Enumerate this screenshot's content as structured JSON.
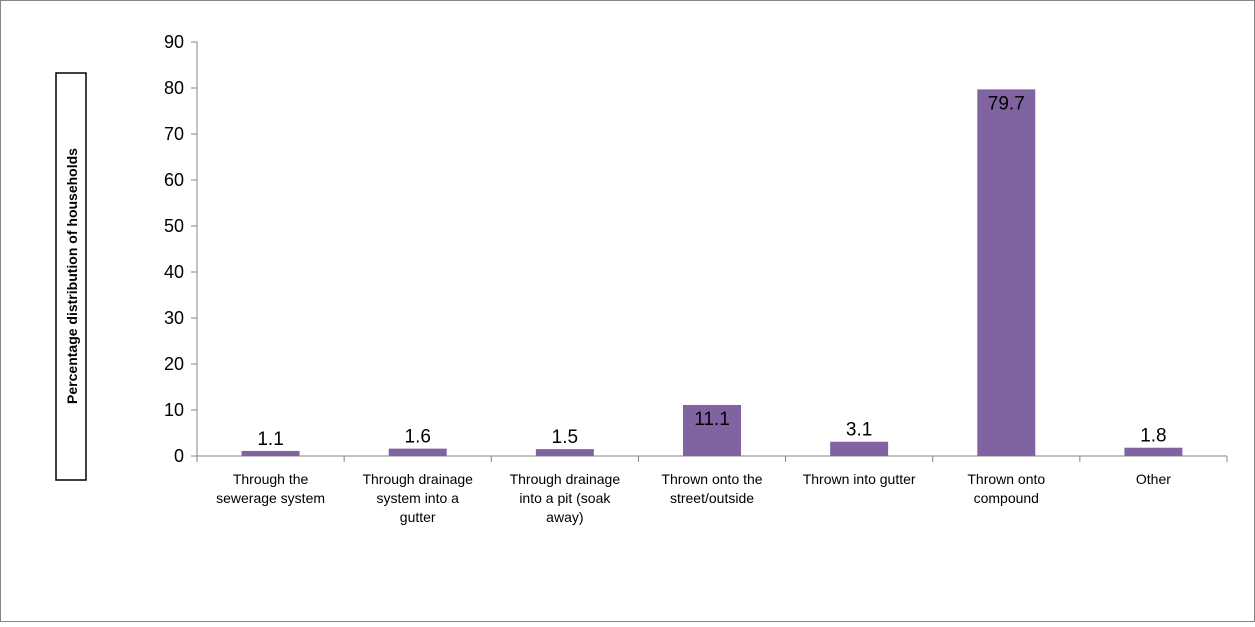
{
  "chart_data": {
    "type": "bar",
    "title": "",
    "ylabel": "Percentage distribution of households",
    "xlabel": "",
    "ylim": [
      0,
      90
    ],
    "yticks": [
      0,
      10,
      20,
      30,
      40,
      50,
      60,
      70,
      80,
      90
    ],
    "grid": false,
    "legend": "none",
    "bar_color": "#8064A2",
    "categories": [
      [
        "Through the",
        "sewerage system"
      ],
      [
        "Through drainage",
        "system into a",
        "gutter"
      ],
      [
        "Through drainage",
        "into a pit (soak",
        "away)"
      ],
      [
        "Thrown onto the",
        "street/outside"
      ],
      [
        "Thrown into gutter"
      ],
      [
        "Thrown onto",
        "compound"
      ],
      [
        "Other"
      ]
    ],
    "values": [
      1.1,
      1.6,
      1.5,
      11.1,
      3.1,
      79.7,
      1.8
    ],
    "data_labels": [
      "1.1",
      "1.6",
      "1.5",
      "11.1",
      "3.1",
      "79.7",
      "1.8"
    ]
  }
}
